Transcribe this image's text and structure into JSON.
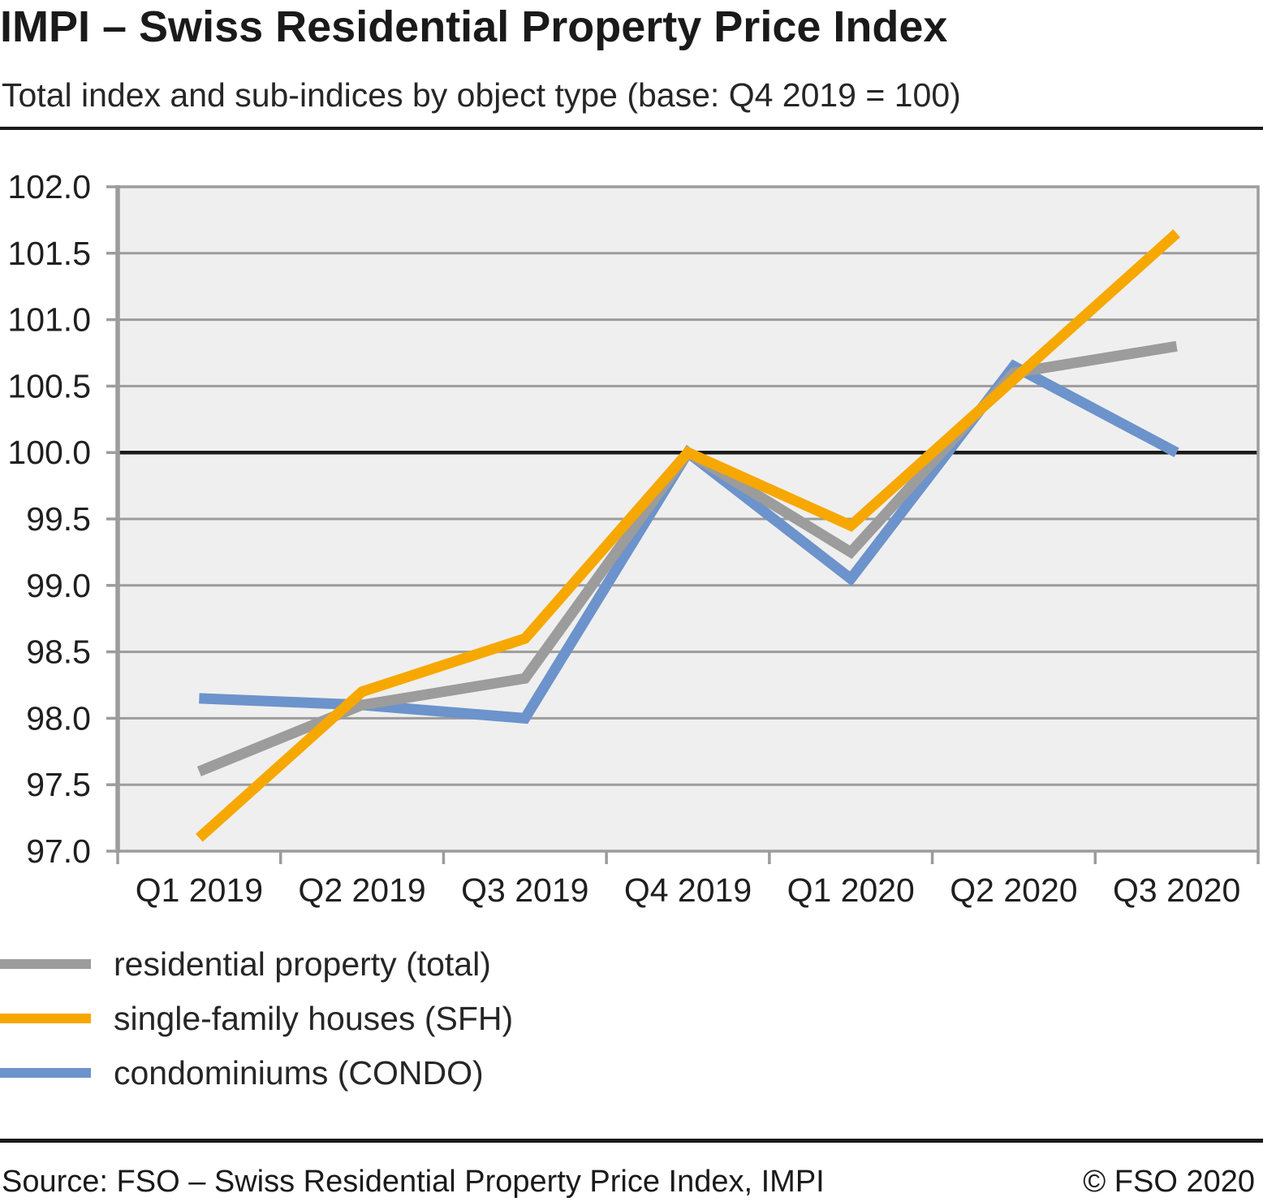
{
  "chart_data": {
    "type": "line",
    "title": "IMPI – Swiss Residential Property Price Index",
    "subtitle": "Total index and sub-indices by object type (base: Q4 2019 = 100)",
    "categories": [
      "Q1 2019",
      "Q2 2019",
      "Q3 2019",
      "Q4 2019",
      "Q1 2020",
      "Q2 2020",
      "Q3 2020"
    ],
    "series": [
      {
        "name": "residential property (total)",
        "color": "#9c9c9c",
        "draw_order": 1,
        "values": [
          97.6,
          98.1,
          98.3,
          100.0,
          99.25,
          100.6,
          100.8
        ]
      },
      {
        "name": "single-family houses (SFH)",
        "color": "#f6a800",
        "draw_order": 2,
        "values": [
          97.1,
          98.2,
          98.6,
          100.0,
          99.45,
          100.55,
          101.65
        ]
      },
      {
        "name": "condominiums (CONDO)",
        "color": "#6c93cb",
        "draw_order": 0,
        "values": [
          98.15,
          98.1,
          98.0,
          100.0,
          99.05,
          100.65,
          100.0
        ]
      }
    ],
    "ylim": [
      97.0,
      102.0
    ],
    "ytick_step": 0.5,
    "yticks": [
      "102.0",
      "101.5",
      "101.0",
      "100.5",
      "100.0",
      "99.5",
      "99.0",
      "98.5",
      "98.0",
      "97.5",
      "97.0"
    ],
    "baseline_value": 100.0,
    "grid": "horizontal",
    "legend_position": "bottom-left",
    "colors": {
      "plot_bg": "#f0efef",
      "grid": "#9c9c9c",
      "baseline": "#1a1a1a",
      "axis_text": "#1f1f1f"
    }
  },
  "footer": {
    "source": "Source: FSO – Swiss Residential Property Price Index, IMPI",
    "copyright": "© FSO 2020"
  }
}
